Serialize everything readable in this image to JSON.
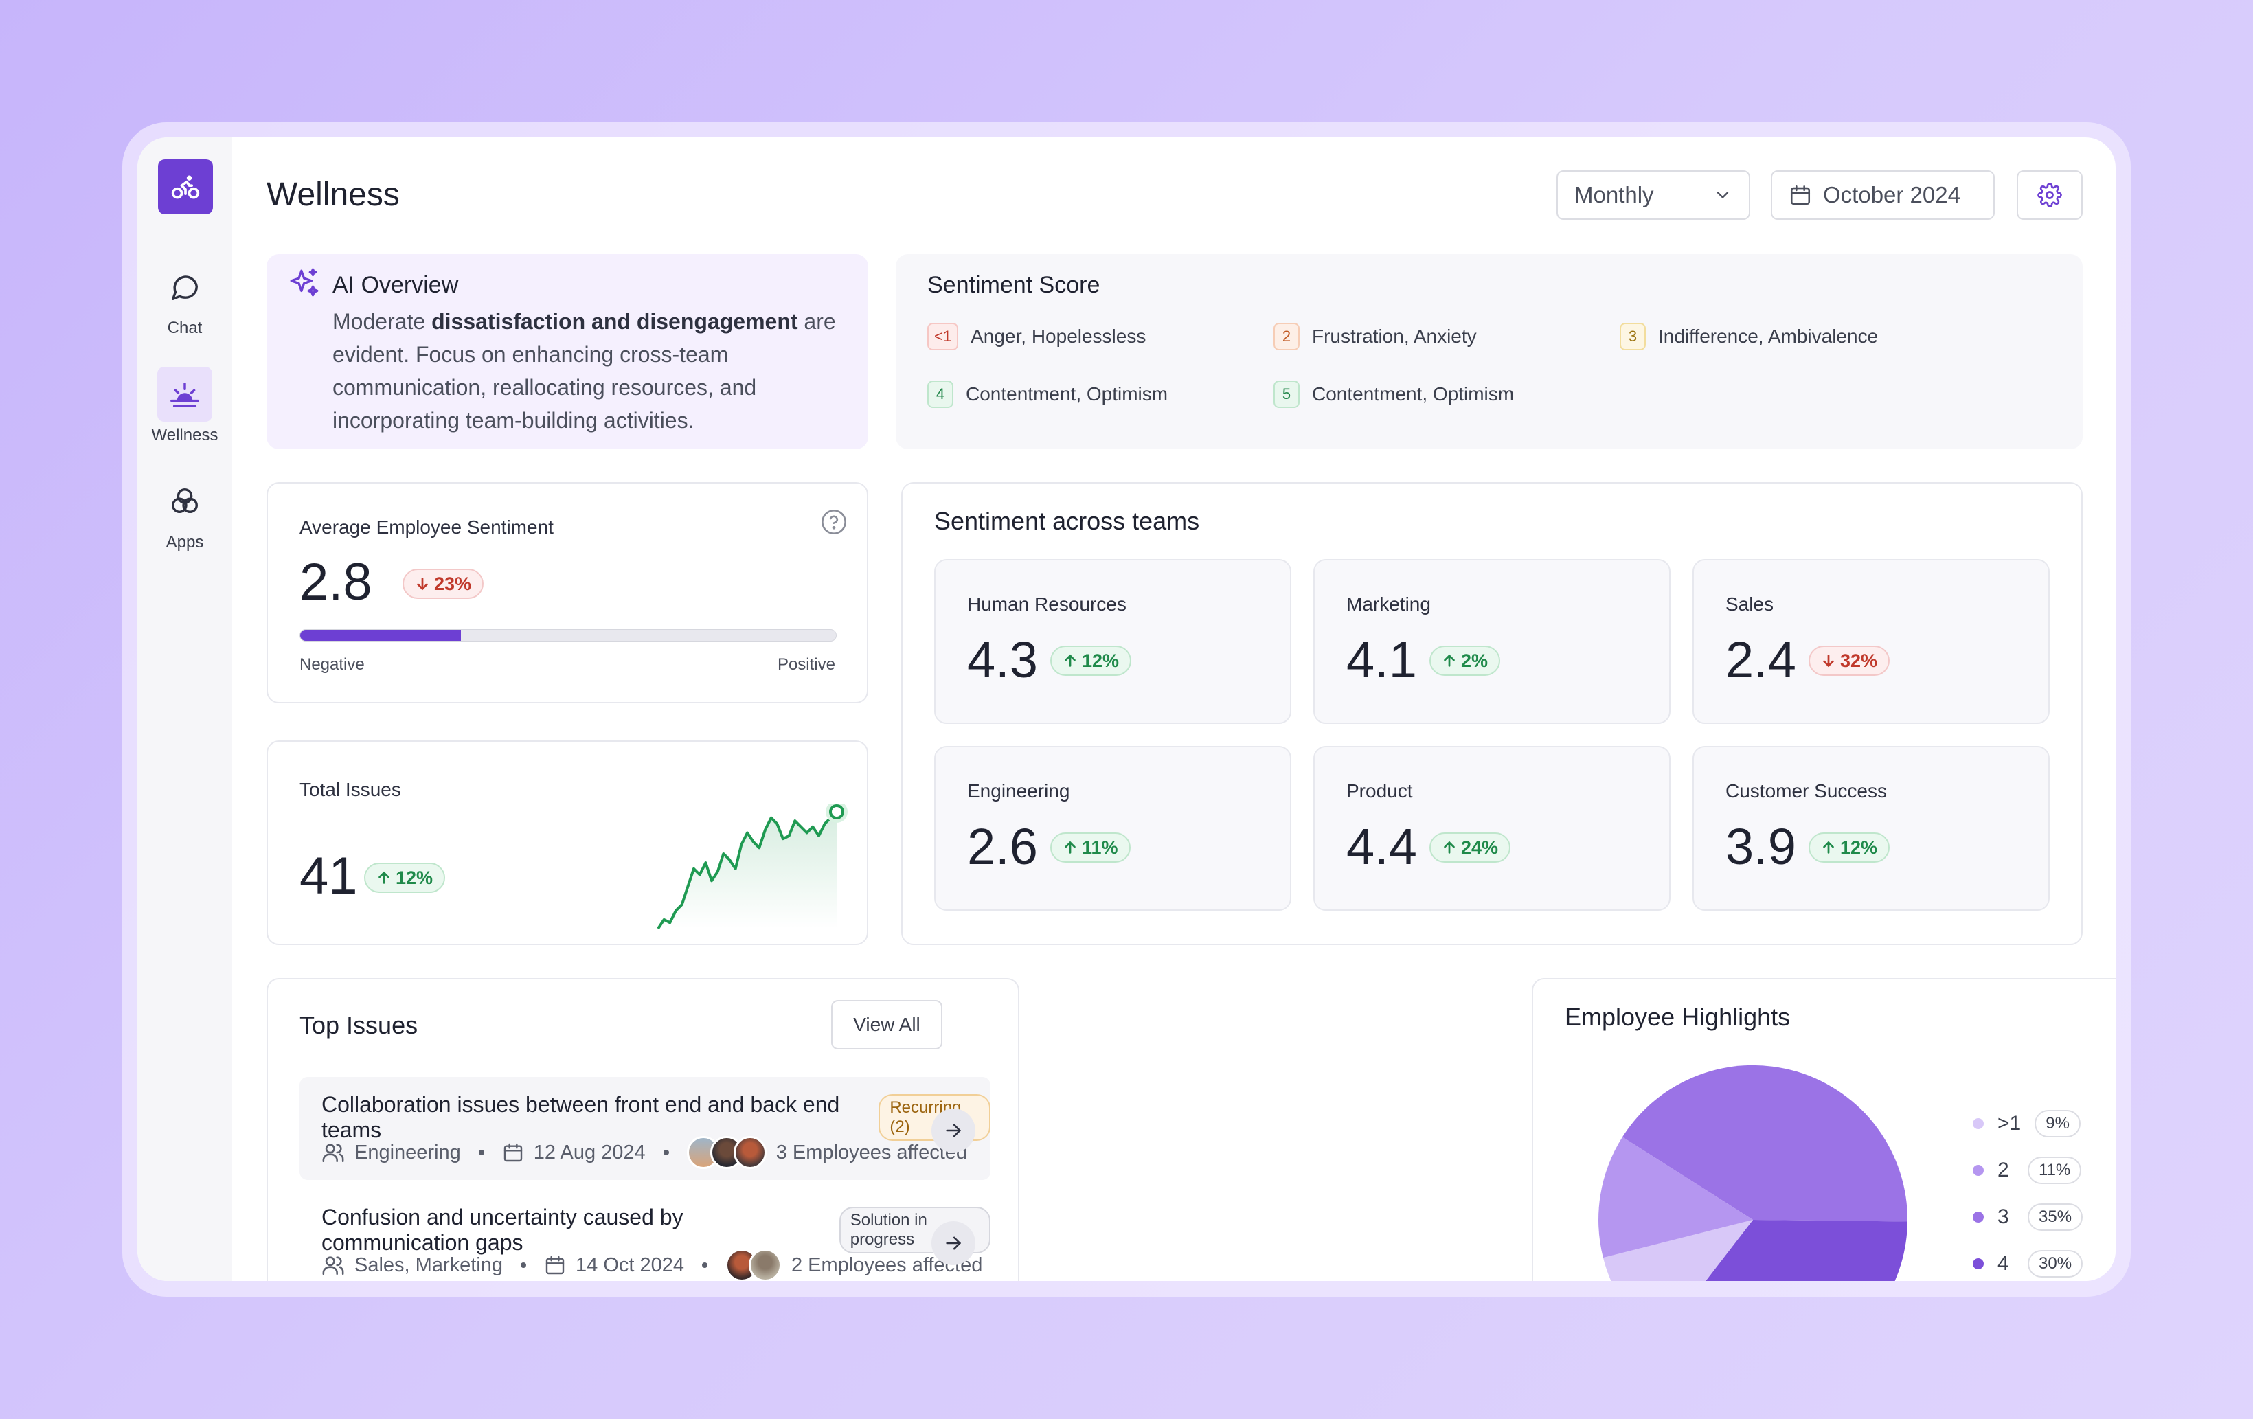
{
  "colors": {
    "accent": "#6d3fd3",
    "accent_light": "#e9e0fb",
    "positive": "#1f8a4a",
    "negative": "#c0392b"
  },
  "sidebar": {
    "logo_icon": "bike-icon",
    "items": [
      {
        "label": "Chat",
        "icon": "chat-bubble-icon",
        "active": false
      },
      {
        "label": "Wellness",
        "icon": "sunrise-icon",
        "active": true
      },
      {
        "label": "Apps",
        "icon": "apps-circles-icon",
        "active": false
      }
    ]
  },
  "header": {
    "title": "Wellness",
    "period_select": "Monthly",
    "month": "October 2024"
  },
  "ai_overview": {
    "title": "AI Overview",
    "text_pre": "Moderate ",
    "text_bold": "dissatisfaction and disengagement",
    "text_post": " are evident. Focus on enhancing cross-team communication, reallocating resources, and incorporating team-building activities."
  },
  "sentiment_score": {
    "title": "Sentiment Score",
    "items": [
      {
        "badge": "<1",
        "label": "Anger, Hopelessless"
      },
      {
        "badge": "2",
        "label": "Frustration, Anxiety"
      },
      {
        "badge": "3",
        "label": "Indifference, Ambivalence"
      },
      {
        "badge": "4",
        "label": "Contentment, Optimism"
      },
      {
        "badge": "5",
        "label": "Contentment, Optimism"
      }
    ]
  },
  "average_sentiment": {
    "title": "Average Employee Sentiment",
    "value": "2.8",
    "delta": "23%",
    "delta_dir": "down",
    "bar_fraction": 0.3,
    "low_label": "Negative",
    "high_label": "Positive"
  },
  "total_issues": {
    "title": "Total Issues",
    "value": "41",
    "delta": "12%",
    "delta_dir": "up"
  },
  "teams": {
    "title": "Sentiment across teams",
    "items": [
      {
        "name": "Human Resources",
        "value": "4.3",
        "delta": "12%",
        "dir": "up"
      },
      {
        "name": "Marketing",
        "value": "4.1",
        "delta": "2%",
        "dir": "up"
      },
      {
        "name": "Sales",
        "value": "2.4",
        "delta": "32%",
        "dir": "down"
      },
      {
        "name": "Engineering",
        "value": "2.6",
        "delta": "11%",
        "dir": "up"
      },
      {
        "name": "Product",
        "value": "4.4",
        "delta": "24%",
        "dir": "up"
      },
      {
        "name": "Customer Success",
        "value": "3.9",
        "delta": "12%",
        "dir": "up"
      }
    ]
  },
  "top_issues": {
    "title": "Top Issues",
    "view_all": "View All",
    "items": [
      {
        "title": "Collaboration issues between front end and back end teams",
        "tag": "Recurring (2)",
        "teams": "Engineering",
        "date": "12 Aug 2024",
        "affected": "3 Employees affected"
      },
      {
        "title": "Confusion and uncertainty caused by communication gaps",
        "tag": "Solution in progress",
        "teams": "Sales, Marketing",
        "date": "14 Oct 2024",
        "affected": "2 Employees affected"
      }
    ]
  },
  "highlights": {
    "title": "Employee Highlights",
    "legend": [
      {
        "label": ">1",
        "pct": "9%",
        "color": "#d8c8f8"
      },
      {
        "label": "2",
        "pct": "11%",
        "color": "#b596f0"
      },
      {
        "label": "3",
        "pct": "35%",
        "color": "#9b73e6"
      },
      {
        "label": "4",
        "pct": "30%",
        "color": "#7c4fd9"
      }
    ]
  },
  "chart_data": [
    {
      "type": "line",
      "title": "",
      "x": [
        1,
        2,
        3,
        4,
        5,
        6,
        7,
        8,
        9,
        10,
        11,
        12,
        13,
        14,
        15,
        16,
        17,
        18,
        19,
        20,
        21,
        22,
        23,
        24,
        25,
        26,
        27,
        28,
        29,
        30,
        31
      ],
      "values": [
        2,
        5,
        4,
        8,
        10,
        16,
        22,
        20,
        24,
        18,
        21,
        27,
        25,
        22,
        30,
        34,
        31,
        29,
        35,
        39,
        37,
        32,
        33,
        38,
        36,
        34,
        36,
        33,
        37,
        39,
        41
      ]
    },
    {
      "type": "pie",
      "title": "Employee Highlights",
      "categories": [
        ">1",
        "2",
        "3",
        "4"
      ],
      "values": [
        9,
        11,
        35,
        30
      ]
    }
  ]
}
